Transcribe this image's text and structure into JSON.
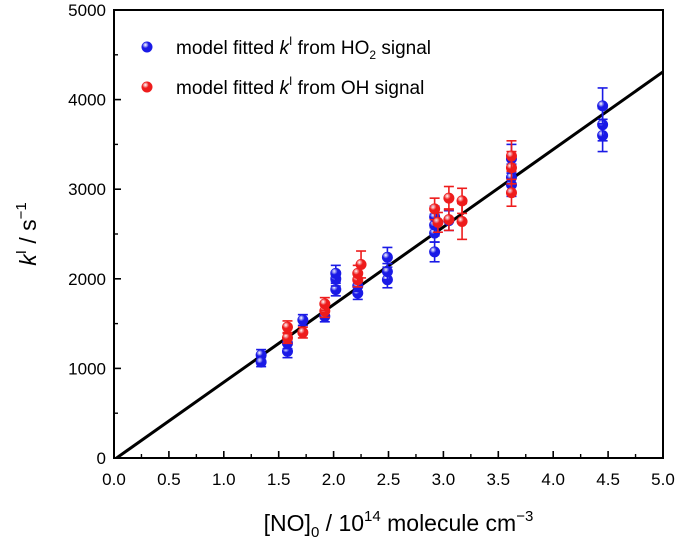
{
  "chart_data": {
    "type": "scatter",
    "title": "",
    "xlabel": {
      "main": "[NO]",
      "sub": "0",
      "mid": " / 10",
      "sup": "14",
      "rest": " molecule cm",
      "sup2": "−3"
    },
    "ylabel": {
      "italic": "k",
      "sup": "I",
      "rest": " / s",
      "sup2": "−1"
    },
    "xlim": [
      0.0,
      5.0
    ],
    "ylim": [
      0,
      5000
    ],
    "xticks": [
      "0.0",
      "0.5",
      "1.0",
      "1.5",
      "2.0",
      "2.5",
      "3.0",
      "3.5",
      "4.0",
      "4.5",
      "5.0"
    ],
    "yticks": [
      "0",
      "1000",
      "2000",
      "3000",
      "4000",
      "5000"
    ],
    "grid": false,
    "legend_position": "top-left",
    "series": [
      {
        "name": "model fitted kI from HO2 signal",
        "legend": {
          "pre": "model fitted ",
          "italic": "k",
          "sup": "I",
          "mid": " from HO",
          "sub": "2",
          "post": " signal"
        },
        "color": "#1a1ae6",
        "points": [
          {
            "x": 1.34,
            "y": 1150,
            "err": 60
          },
          {
            "x": 1.34,
            "y": 1070,
            "err": 50
          },
          {
            "x": 1.58,
            "y": 1190,
            "err": 70
          },
          {
            "x": 1.58,
            "y": 1280,
            "err": 60
          },
          {
            "x": 1.72,
            "y": 1540,
            "err": 60
          },
          {
            "x": 1.92,
            "y": 1580,
            "err": 60
          },
          {
            "x": 2.02,
            "y": 1880,
            "err": 70
          },
          {
            "x": 2.02,
            "y": 2000,
            "err": 80
          },
          {
            "x": 2.02,
            "y": 2060,
            "err": 90
          },
          {
            "x": 2.22,
            "y": 1840,
            "err": 70
          },
          {
            "x": 2.22,
            "y": 1920,
            "err": 60
          },
          {
            "x": 2.49,
            "y": 1990,
            "err": 90
          },
          {
            "x": 2.49,
            "y": 2080,
            "err": 90
          },
          {
            "x": 2.49,
            "y": 2240,
            "err": 110
          },
          {
            "x": 2.92,
            "y": 2300,
            "err": 110
          },
          {
            "x": 2.92,
            "y": 2510,
            "err": 100
          },
          {
            "x": 2.92,
            "y": 2600,
            "err": 120
          },
          {
            "x": 2.92,
            "y": 2690,
            "err": 120
          },
          {
            "x": 3.05,
            "y": 2650,
            "err": 110
          },
          {
            "x": 3.62,
            "y": 3050,
            "err": 130
          },
          {
            "x": 3.62,
            "y": 3130,
            "err": 150
          },
          {
            "x": 3.62,
            "y": 3340,
            "err": 160
          },
          {
            "x": 4.45,
            "y": 3600,
            "err": 180
          },
          {
            "x": 4.45,
            "y": 3720,
            "err": 180
          },
          {
            "x": 4.45,
            "y": 3930,
            "err": 200
          }
        ]
      },
      {
        "name": "model fitted kI from OH signal",
        "legend": {
          "pre": "model fitted ",
          "italic": "k",
          "sup": "I",
          "mid": " from OH signal",
          "sub": "",
          "post": ""
        },
        "color": "#ee1c1c",
        "points": [
          {
            "x": 1.58,
            "y": 1340,
            "err": 60
          },
          {
            "x": 1.58,
            "y": 1460,
            "err": 70
          },
          {
            "x": 1.72,
            "y": 1400,
            "err": 60
          },
          {
            "x": 1.92,
            "y": 1640,
            "err": 70
          },
          {
            "x": 1.92,
            "y": 1720,
            "err": 70
          },
          {
            "x": 2.22,
            "y": 1990,
            "err": 80
          },
          {
            "x": 2.22,
            "y": 2060,
            "err": 90
          },
          {
            "x": 2.25,
            "y": 2160,
            "err": 150
          },
          {
            "x": 2.92,
            "y": 2780,
            "err": 120
          },
          {
            "x": 2.95,
            "y": 2630,
            "err": 110
          },
          {
            "x": 3.05,
            "y": 2900,
            "err": 130
          },
          {
            "x": 3.05,
            "y": 2660,
            "err": 120
          },
          {
            "x": 3.17,
            "y": 2870,
            "err": 140
          },
          {
            "x": 3.17,
            "y": 2640,
            "err": 200
          },
          {
            "x": 3.62,
            "y": 2960,
            "err": 150
          },
          {
            "x": 3.62,
            "y": 3240,
            "err": 180
          },
          {
            "x": 3.62,
            "y": 3370,
            "err": 170
          }
        ]
      }
    ],
    "fit_line": {
      "x": [
        0.0,
        5.0
      ],
      "y": [
        -20,
        4310
      ],
      "color": "#000000"
    }
  }
}
